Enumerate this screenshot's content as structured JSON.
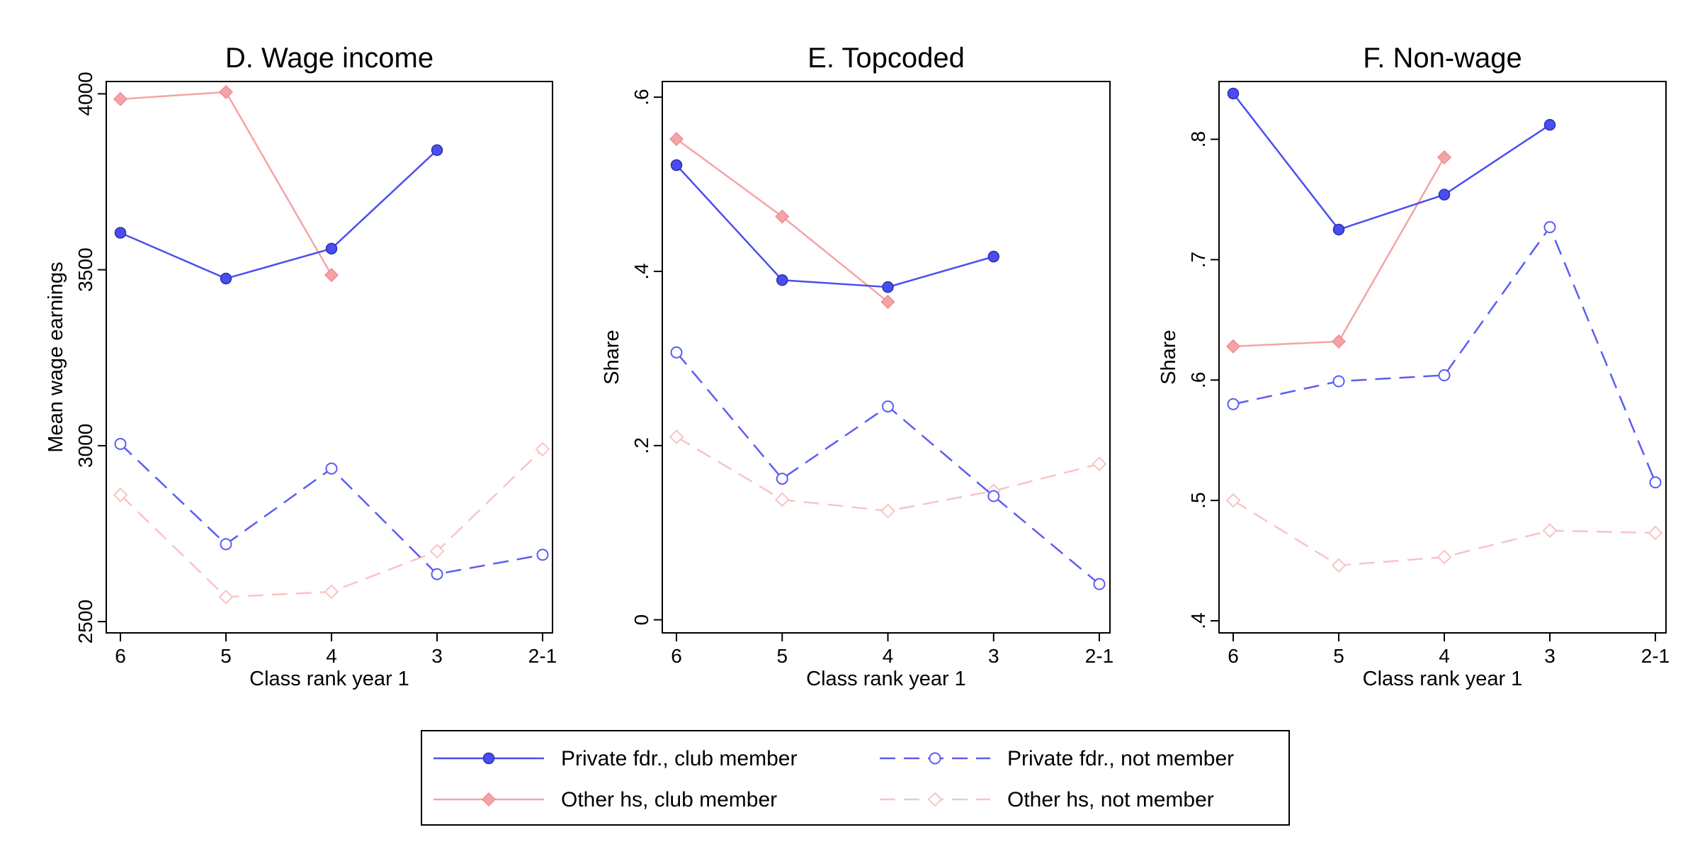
{
  "chart_data": [
    {
      "type": "line",
      "title": "D. Wage income",
      "xlabel": "Class rank year 1",
      "ylabel": "Mean wage earnings",
      "categories": [
        "6",
        "5",
        "4",
        "3",
        "2-1"
      ],
      "yticks": [
        2500,
        3000,
        3500,
        4000
      ],
      "ytick_labels": [
        "2500",
        "3000",
        "3500",
        "4000"
      ],
      "ylim": [
        2468,
        4035
      ],
      "series": [
        {
          "name": "Private fdr., club member",
          "style": "pfc",
          "values": [
            3605,
            3475,
            3560,
            3840,
            null
          ]
        },
        {
          "name": "Private fdr., not member",
          "style": "pfn",
          "values": [
            3005,
            2720,
            2935,
            2635,
            2690
          ]
        },
        {
          "name": "Other hs, club member",
          "style": "ohc",
          "values": [
            3985,
            4005,
            3485,
            null,
            null
          ]
        },
        {
          "name": "Other hs, not member",
          "style": "ohn",
          "values": [
            2860,
            2570,
            2585,
            2700,
            2990
          ]
        }
      ]
    },
    {
      "type": "line",
      "title": "E. Topcoded",
      "xlabel": "Class rank year 1",
      "ylabel": "Share",
      "categories": [
        "6",
        "5",
        "4",
        "3",
        "2-1"
      ],
      "yticks": [
        0,
        0.2,
        0.4,
        0.6
      ],
      "ytick_labels": [
        "0",
        ".2",
        ".4",
        ".6"
      ],
      "ylim": [
        -0.015,
        0.618
      ],
      "series": [
        {
          "name": "Private fdr., club member",
          "style": "pfc",
          "values": [
            0.522,
            0.39,
            0.382,
            0.417,
            null
          ]
        },
        {
          "name": "Private fdr., not member",
          "style": "pfn",
          "values": [
            0.307,
            0.162,
            0.245,
            0.142,
            0.041
          ]
        },
        {
          "name": "Other hs, club member",
          "style": "ohc",
          "values": [
            0.552,
            0.463,
            0.365,
            null,
            null
          ]
        },
        {
          "name": "Other hs, not member",
          "style": "ohn",
          "values": [
            0.21,
            0.138,
            0.125,
            0.148,
            0.179
          ]
        }
      ]
    },
    {
      "type": "line",
      "title": "F. Non-wage",
      "xlabel": "Class rank year 1",
      "ylabel": "Share",
      "categories": [
        "6",
        "5",
        "4",
        "3",
        "2-1"
      ],
      "yticks": [
        0.4,
        0.5,
        0.6,
        0.7,
        0.8
      ],
      "ytick_labels": [
        ".4",
        ".5",
        ".6",
        ".7",
        ".8"
      ],
      "ylim": [
        0.39,
        0.848
      ],
      "series": [
        {
          "name": "Private fdr., club member",
          "style": "pfc",
          "values": [
            0.838,
            0.725,
            0.754,
            0.812,
            null
          ]
        },
        {
          "name": "Private fdr., not member",
          "style": "pfn",
          "values": [
            0.58,
            0.599,
            0.604,
            0.727,
            0.515
          ]
        },
        {
          "name": "Other hs, club member",
          "style": "ohc",
          "values": [
            0.628,
            0.632,
            0.785,
            null,
            null
          ]
        },
        {
          "name": "Other hs, not member",
          "style": "ohn",
          "values": [
            0.5,
            0.446,
            0.453,
            0.475,
            0.473
          ]
        }
      ]
    }
  ],
  "legend": {
    "placement": "bottom-center",
    "items": [
      {
        "label": "Private fdr., club member",
        "style": "pfc"
      },
      {
        "label": "Private fdr., not member",
        "style": "pfn"
      },
      {
        "label": "Other hs, club member",
        "style": "ohc"
      },
      {
        "label": "Other hs, not member",
        "style": "ohn"
      }
    ]
  },
  "styles": {
    "pfc": {
      "color": "#4a4ef0",
      "marker": "filled-circle",
      "dash": "solid"
    },
    "pfn": {
      "color": "#5a5ef2",
      "marker": "hollow-circle",
      "dash": "dashed"
    },
    "ohc": {
      "color": "#f4a4a6",
      "marker": "filled-diamond",
      "dash": "solid"
    },
    "ohn": {
      "color": "#f8c4c4",
      "marker": "hollow-diamond",
      "dash": "dashed"
    }
  }
}
